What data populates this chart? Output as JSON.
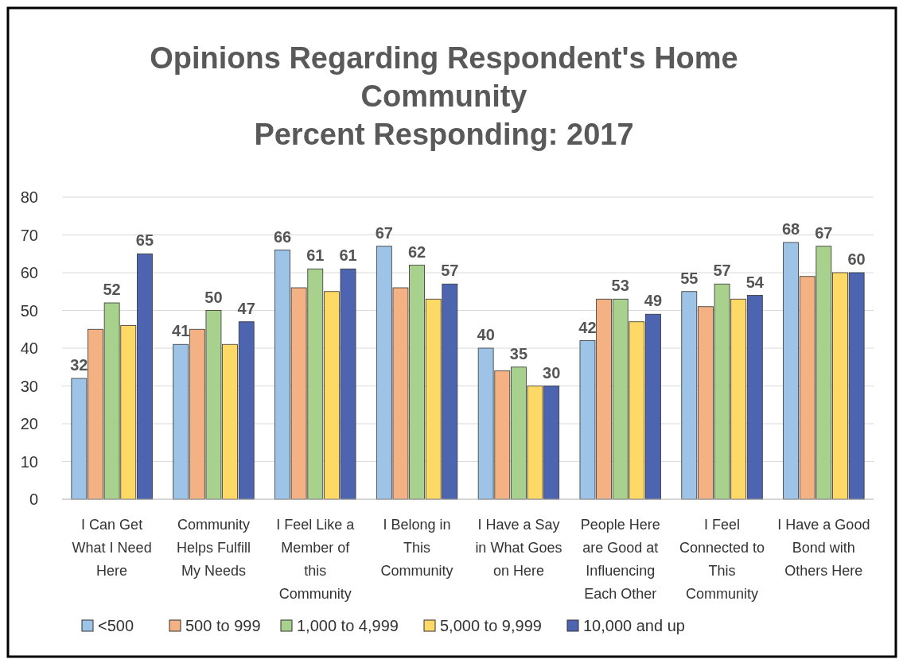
{
  "chart_data": {
    "type": "bar",
    "title": "Opinions Regarding Respondent's Home Community\nPercent Responding: 2017",
    "categories": [
      "I Can Get What I Need Here",
      "Community Helps Fulfill My Needs",
      "I Feel Like a Member of this Community",
      "I Belong in This Community",
      "I Have a Say in What Goes on Here",
      "People Here are Good at Influencing Each Other",
      "I Feel Connected to This Community",
      "I Have a Good Bond with Others Here"
    ],
    "series": [
      {
        "name": "<500",
        "color": "#9dc3e6",
        "values": [
          32,
          41,
          66,
          67,
          40,
          42,
          55,
          68
        ],
        "value_labels": [
          "32",
          "41",
          "66",
          "67",
          "40",
          "42",
          "55",
          "68"
        ]
      },
      {
        "name": "500 to 999",
        "color": "#f4b183",
        "values": [
          45,
          45,
          56,
          56,
          34,
          53,
          51,
          59
        ],
        "value_labels": [
          null,
          null,
          null,
          null,
          null,
          null,
          null,
          null
        ]
      },
      {
        "name": "1,000 to 4,999",
        "color": "#a9d18e",
        "values": [
          52,
          50,
          61,
          62,
          35,
          53,
          57,
          67
        ],
        "value_labels": [
          "52",
          "50",
          "61",
          "62",
          "35",
          "53",
          "57",
          "67"
        ]
      },
      {
        "name": "5,000 to 9,999",
        "color": "#ffd966",
        "values": [
          46,
          41,
          55,
          53,
          30,
          47,
          53,
          60
        ],
        "value_labels": [
          null,
          null,
          null,
          null,
          null,
          null,
          null,
          null
        ]
      },
      {
        "name": "10,000 and up",
        "color": "#4d64b0",
        "values": [
          65,
          47,
          61,
          57,
          30,
          49,
          54,
          60
        ],
        "value_labels": [
          "65",
          "47",
          "61",
          "57",
          "30",
          "49",
          "54",
          "60"
        ]
      }
    ],
    "ylim": [
      0,
      80
    ],
    "yticks": [
      0,
      10,
      20,
      30,
      40,
      50,
      60,
      70,
      80
    ],
    "grid": "y",
    "legend": "bottom"
  }
}
